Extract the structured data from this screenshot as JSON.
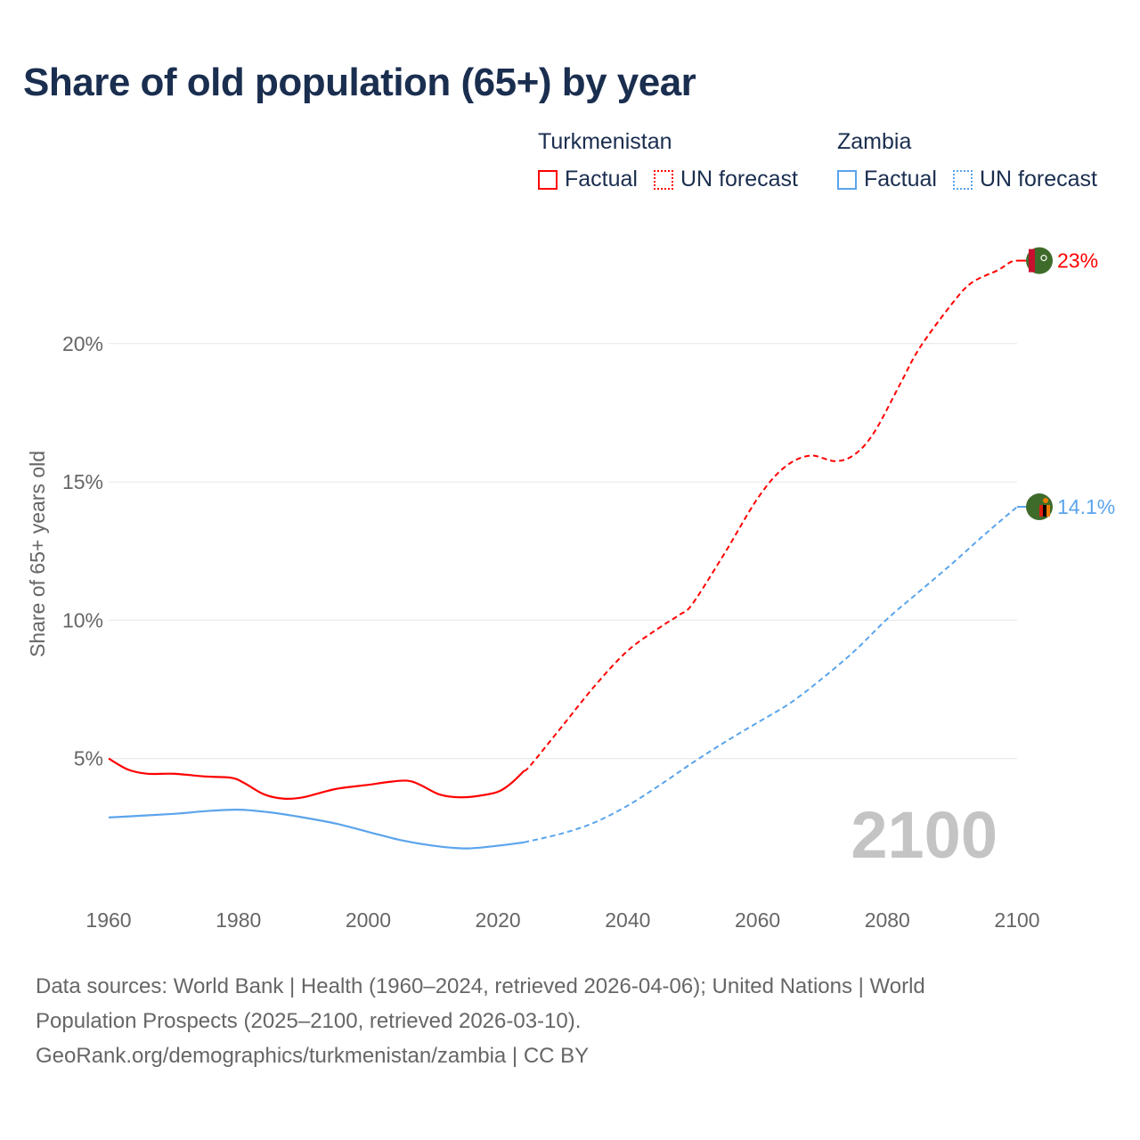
{
  "title": "Share of old population (65+) by year",
  "legend": [
    {
      "country": "Turkmenistan",
      "color": "#ff0000",
      "factual": "Factual",
      "forecast": "UN forecast"
    },
    {
      "country": "Zambia",
      "color": "#5ba4ec",
      "factual": "Factual",
      "forecast": "UN forecast"
    }
  ],
  "year_watermark": "2100",
  "footer": {
    "line1": "Data sources: World Bank | Health (1960–2024, retrieved 2026-04-06); United Nations | World",
    "line2": "Population Prospects (2025–2100, retrieved 2026-03-10).",
    "line3": "GeoRank.org/demographics/turkmenistan/zambia | CC BY"
  },
  "chart_data": {
    "type": "line",
    "title": "Share of old population (65+) by year",
    "xlabel": "",
    "ylabel": "Share of 65+ years old",
    "xlim": [
      1960,
      2100
    ],
    "ylim": [
      0,
      23
    ],
    "x_ticks": [
      1960,
      1980,
      2000,
      2020,
      2040,
      2060,
      2080,
      2100
    ],
    "x_tick_labels": [
      "1960",
      "1980",
      "2000",
      "2020",
      "2040",
      "2060",
      "2080",
      "2100"
    ],
    "y_ticks": [
      5,
      10,
      15,
      20
    ],
    "y_tick_labels": [
      "5%",
      "10%",
      "15%",
      "20%"
    ],
    "grid": true,
    "legend_position": "top-right",
    "series": [
      {
        "name": "Turkmenistan",
        "color": "#ff0000",
        "end_label": "23%",
        "factual": {
          "x": [
            1960,
            1963,
            1966,
            1970,
            1975,
            1979,
            1981,
            1984,
            1987,
            1990,
            1995,
            2000,
            2003,
            2006,
            2008,
            2011,
            2014,
            2017,
            2020,
            2022,
            2024
          ],
          "y": [
            5.0,
            4.6,
            4.45,
            4.45,
            4.35,
            4.3,
            4.1,
            3.7,
            3.55,
            3.6,
            3.9,
            4.05,
            4.15,
            4.2,
            4.05,
            3.7,
            3.6,
            3.65,
            3.8,
            4.1,
            4.55
          ]
        },
        "forecast": {
          "x": [
            2024,
            2025,
            2030,
            2035,
            2040,
            2045,
            2048,
            2050,
            2055,
            2060,
            2064,
            2068,
            2072,
            2075,
            2078,
            2082,
            2085,
            2090,
            2093,
            2097,
            2099,
            2100
          ],
          "y": [
            4.55,
            4.75,
            6.2,
            7.65,
            8.9,
            9.75,
            10.2,
            10.6,
            12.45,
            14.4,
            15.5,
            15.95,
            15.75,
            16.0,
            16.8,
            18.55,
            19.85,
            21.45,
            22.2,
            22.65,
            22.95,
            23.0
          ]
        }
      },
      {
        "name": "Zambia",
        "color": "#5ba4ec",
        "end_label": "14.1%",
        "factual": {
          "x": [
            1960,
            1970,
            1975,
            1980,
            1985,
            1990,
            1995,
            2000,
            2005,
            2010,
            2015,
            2020,
            2024
          ],
          "y": [
            2.87,
            3.0,
            3.1,
            3.15,
            3.05,
            2.87,
            2.65,
            2.35,
            2.05,
            1.85,
            1.75,
            1.85,
            1.97
          ]
        },
        "forecast": {
          "x": [
            2024,
            2030,
            2035,
            2040,
            2045,
            2050,
            2055,
            2060,
            2065,
            2070,
            2075,
            2080,
            2085,
            2090,
            2095,
            2100
          ],
          "y": [
            1.97,
            2.3,
            2.7,
            3.3,
            4.05,
            4.85,
            5.6,
            6.3,
            7.0,
            7.9,
            8.9,
            10.05,
            11.05,
            12.05,
            13.1,
            14.1
          ]
        }
      }
    ]
  }
}
